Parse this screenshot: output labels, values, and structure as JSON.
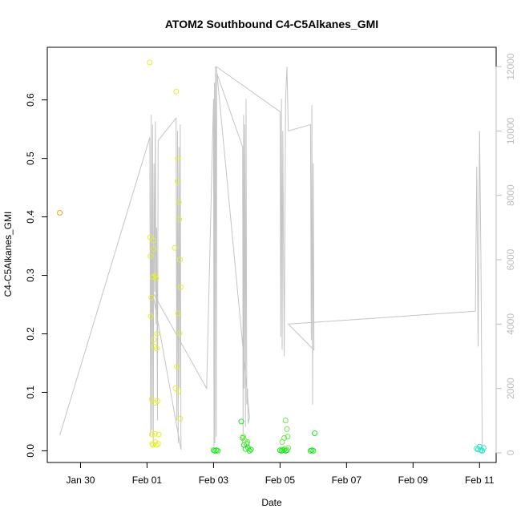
{
  "chart_data": {
    "type": "scatter",
    "title": "ATOM2 Southbound C4-C5Alkanes_GMI",
    "xlabel": "Date",
    "ylabel": "C4-C5Alkanes_GMI",
    "x_ticks": [
      "Jan 30",
      "Feb 01",
      "Feb 03",
      "Feb 05",
      "Feb 07",
      "Feb 09",
      "Feb 11"
    ],
    "y_ticks": [
      "0.0",
      "0.1",
      "0.2",
      "0.3",
      "0.4",
      "0.5",
      "0.6"
    ],
    "y2_ticks": [
      "0",
      "2000",
      "4000",
      "6000",
      "8000",
      "10000",
      "12000"
    ],
    "xlim": [
      "2017-01-29",
      "2017-02-11 12:00"
    ],
    "ylim": [
      -0.02,
      0.69
    ],
    "y2lim": [
      -300,
      12600
    ],
    "grid": false,
    "legend": "none",
    "colors": {
      "orange": "#f5a01e",
      "yellow": "#e6ee2e",
      "green": "#1ee81e",
      "lime": "#6ee84a",
      "cyan": "#22e8c8",
      "secondary_line": "#c4c4c4"
    },
    "series": [
      {
        "color": "orange",
        "x": [
          "2017-01-29 09:00"
        ],
        "y": [
          0.407
        ]
      },
      {
        "color": "yellow",
        "x": [
          "2017-02-01 02:00",
          "2017-02-01 02:15",
          "2017-02-01 02:30",
          "2017-02-01 02:45",
          "2017-02-01 03:00",
          "2017-02-01 03:15",
          "2017-02-01 03:30",
          "2017-02-01 03:45",
          "2017-02-01 04:00",
          "2017-02-01 04:15",
          "2017-02-01 04:30",
          "2017-02-01 04:45",
          "2017-02-01 05:00",
          "2017-02-01 05:15",
          "2017-02-01 05:30",
          "2017-02-01 05:45",
          "2017-02-01 06:00",
          "2017-02-01 06:15",
          "2017-02-01 06:30",
          "2017-02-01 06:45",
          "2017-02-01 07:00",
          "2017-02-01 07:15",
          "2017-02-01 07:30",
          "2017-02-01 08:00",
          "2017-02-01 08:30",
          "2017-02-01 20:00",
          "2017-02-01 20:30",
          "2017-02-01 21:00",
          "2017-02-01 21:30",
          "2017-02-01 22:00",
          "2017-02-01 22:15",
          "2017-02-01 22:30",
          "2017-02-01 22:45",
          "2017-02-01 23:00",
          "2017-02-01 23:15",
          "2017-02-01 23:30",
          "2017-02-01 23:45",
          "2017-02-02 00:00",
          "2017-02-02 00:15"
        ],
        "y": [
          0.664,
          0.365,
          0.333,
          0.23,
          0.262,
          0.088,
          0.028,
          0.012,
          0.297,
          0.01,
          0.36,
          0.345,
          0.19,
          0.178,
          0.082,
          0.029,
          0.015,
          0.3,
          0.295,
          0.01,
          0.175,
          0.2,
          0.085,
          0.012,
          0.028,
          0.347,
          0.107,
          0.614,
          0.144,
          0.461,
          0.5,
          0.235,
          0.101,
          0.425,
          0.396,
          0.201,
          0.327,
          0.055,
          0.28
        ]
      },
      {
        "color": "green",
        "x": [
          "2017-02-03 00:00",
          "2017-02-03 01:00",
          "2017-02-03 02:00",
          "2017-02-03 03:00",
          "2017-02-03 20:00",
          "2017-02-03 21:00",
          "2017-02-03 22:00",
          "2017-02-03 23:00",
          "2017-02-04 00:00",
          "2017-02-04 01:00",
          "2017-02-04 02:00",
          "2017-02-04 03:00",
          "2017-02-05 00:00",
          "2017-02-05 01:00",
          "2017-02-05 02:00",
          "2017-02-05 03:00",
          "2017-02-05 04:00",
          "2017-02-05 05:00",
          "2017-02-05 22:00",
          "2017-02-05 23:00",
          "2017-02-06 00:00",
          "2017-02-06 01:00"
        ],
        "y": [
          0.001,
          0.0,
          0.001,
          0.0,
          0.05,
          0.022,
          0.01,
          0.003,
          0.012,
          0.005,
          0.0,
          0.002,
          0.001,
          0.0,
          0.001,
          0.002,
          0.0,
          0.001,
          0.0,
          0.001,
          0.0,
          0.03
        ]
      },
      {
        "color": "lime",
        "x": [
          "2017-02-03 21:30",
          "2017-02-03 22:30",
          "2017-02-04 00:30",
          "2017-02-05 01:30",
          "2017-02-05 03:00",
          "2017-02-05 04:00",
          "2017-02-05 05:00",
          "2017-02-05 05:30",
          "2017-02-05 06:00"
        ],
        "y": [
          0.024,
          0.018,
          0.015,
          0.015,
          0.022,
          0.052,
          0.037,
          0.024,
          0.005
        ]
      },
      {
        "color": "cyan",
        "x": [
          "2017-02-10 22:00",
          "2017-02-10 23:00",
          "2017-02-11 00:00",
          "2017-02-11 01:00",
          "2017-02-11 02:00",
          "2017-02-11 03:00"
        ],
        "y": [
          0.004,
          0.002,
          0.007,
          0.001,
          0.0,
          0.005
        ]
      }
    ],
    "secondary_series": {
      "axis": "right",
      "color": "secondary_line",
      "x": [
        "2017-01-29 09:00",
        "2017-02-01 02:00",
        "2017-02-01 02:30",
        "2017-02-01 03:00",
        "2017-02-01 03:30",
        "2017-02-01 04:00",
        "2017-02-01 04:30",
        "2017-02-01 05:00",
        "2017-02-01 05:30",
        "2017-02-01 06:00",
        "2017-02-01 06:30",
        "2017-02-01 07:00",
        "2017-02-01 07:30",
        "2017-02-01 08:00",
        "2017-02-01 21:00",
        "2017-02-01 21:30",
        "2017-02-01 22:00",
        "2017-02-01 22:30",
        "2017-02-01 23:00",
        "2017-02-01 23:30",
        "2017-02-02 00:00",
        "2017-02-02 00:30",
        "2017-02-01 04:00",
        "2017-02-02 19:00",
        "2017-02-03 00:00",
        "2017-02-03 00:20",
        "2017-02-03 00:40",
        "2017-02-03 01:00",
        "2017-02-03 01:20",
        "2017-02-03 01:40",
        "2017-02-03 02:00",
        "2017-02-03 02:20",
        "2017-02-03 21:00",
        "2017-02-03 21:20",
        "2017-02-03 21:40",
        "2017-02-03 22:00",
        "2017-02-03 22:30",
        "2017-02-03 23:00",
        "2017-02-03 23:30",
        "2017-02-04 00:00",
        "2017-02-04 00:30",
        "2017-02-04 01:00",
        "2017-02-04 02:00",
        "2017-02-03 02:00",
        "2017-02-05 00:00",
        "2017-02-05 00:30",
        "2017-02-05 01:00",
        "2017-02-05 01:30",
        "2017-02-05 02:00",
        "2017-02-05 03:00",
        "2017-02-05 04:00",
        "2017-02-05 05:00",
        "2017-02-05 06:00",
        "2017-02-05 22:00",
        "2017-02-05 22:30",
        "2017-02-05 23:00",
        "2017-02-05 23:30",
        "2017-02-06 00:00",
        "2017-02-06 00:30",
        "2017-02-05 06:00",
        "2017-02-10 21:00",
        "2017-02-10 22:00",
        "2017-02-10 23:00",
        "2017-02-11 00:00",
        "2017-02-11 01:00",
        "2017-02-11 02:00"
      ],
      "y": [
        550,
        9800,
        500,
        10500,
        700,
        10200,
        200,
        9000,
        5000,
        10300,
        4000,
        7000,
        1000,
        9700,
        10400,
        1000,
        10000,
        300,
        9500,
        2000,
        10200,
        100,
        5000,
        2000,
        11000,
        200,
        11500,
        300,
        12000,
        10000,
        500,
        11800,
        9500,
        600,
        10500,
        2000,
        10200,
        800,
        11000,
        1500,
        2000,
        900,
        1100,
        12000,
        10600,
        3600,
        11000,
        3200,
        10000,
        3000,
        11000,
        12000,
        10000,
        10200,
        3500,
        10800,
        1500,
        9000,
        3200,
        4000,
        4400,
        8900,
        3300,
        10000,
        6000,
        0
      ]
    }
  }
}
